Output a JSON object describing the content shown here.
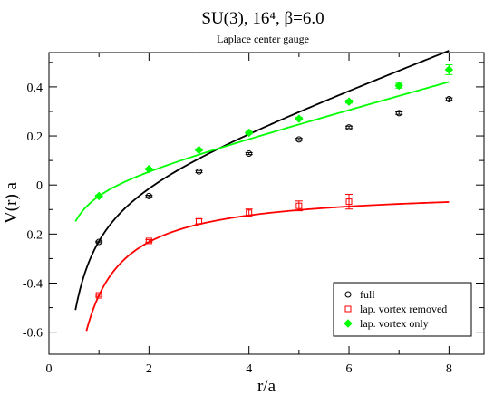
{
  "chart_data": {
    "type": "scatter",
    "title": "SU(3), 16⁴, β=6.0",
    "subtitle": "Laplace center gauge",
    "xlabel": "r/a",
    "ylabel": "V(r) a",
    "xlim": [
      0,
      8.7
    ],
    "ylim": [
      -0.69,
      0.54
    ],
    "xticks": [
      0,
      2,
      4,
      6,
      8
    ],
    "yticks": [
      -0.6,
      -0.4,
      -0.2,
      0,
      0.2,
      0.4
    ],
    "ytick_labels": [
      "-0.6",
      "-0.4",
      "-0.2",
      "0",
      "0.2",
      "0.4"
    ],
    "xtick_labels": [
      "0",
      "2",
      "4",
      "6",
      "8"
    ],
    "grid": false,
    "legend_position": "bottom-right",
    "series": [
      {
        "name": "full",
        "marker": "circle",
        "color": "#000000",
        "x": [
          1,
          2,
          3,
          4,
          5,
          6,
          7,
          8
        ],
        "y": [
          -0.232,
          -0.045,
          0.055,
          0.128,
          0.186,
          0.235,
          0.293,
          0.35
        ],
        "err": [
          0.003,
          0.003,
          0.004,
          0.004,
          0.004,
          0.005,
          0.005,
          0.005
        ],
        "fit": {
          "A": 0.2757,
          "B": 0.0765,
          "C": 0.06,
          "xmin": 0.53,
          "xmax": 8
        }
      },
      {
        "name": "lap. vortex removed",
        "marker": "square",
        "color": "#ff0000",
        "x": [
          1,
          2,
          3,
          4,
          5,
          6
        ],
        "y": [
          -0.45,
          -0.228,
          -0.148,
          -0.113,
          -0.085,
          -0.068
        ],
        "err": [
          0.004,
          0.005,
          0.01,
          0.015,
          0.02,
          0.03
        ],
        "fit": {
          "A": 0.0155,
          "B": 0.0365,
          "C": 0.4345,
          "xmin": 0.75,
          "xmax": 8
        }
      },
      {
        "name": "lap. vortex only",
        "marker": "diamond",
        "color": "#00ff00",
        "x": [
          1,
          2,
          3,
          4,
          5,
          6,
          7,
          8
        ],
        "y": [
          -0.045,
          0.065,
          0.143,
          0.213,
          0.27,
          0.34,
          0.405,
          0.47
        ],
        "err": [
          0.004,
          0.004,
          0.004,
          0.005,
          0.005,
          0.006,
          0.01,
          0.02
        ],
        "fit": {
          "A": 0.0868,
          "B": 0.0557,
          "C": 0.0748,
          "xmin": 0.53,
          "xmax": 8
        }
      }
    ]
  }
}
